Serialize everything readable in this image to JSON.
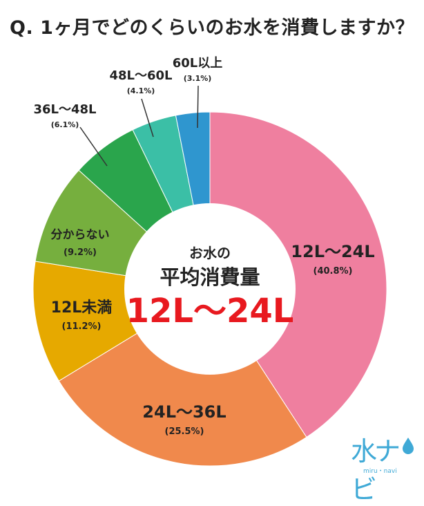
{
  "title": "Q. 1ヶ月でどのくらいのお水を消費しますか？",
  "center": {
    "line1": "お水の",
    "line2": "平均消費量",
    "value": "12L〜24L"
  },
  "logo": {
    "text": "水ナビ",
    "sub": "miru・navi"
  },
  "colors": {
    "12L〜24L": "#ef7f9f",
    "24L〜36L": "#f0894c",
    "12L未満": "#e6a900",
    "分からない": "#76af3e",
    "36L〜48L": "#2aa54c",
    "48L〜60L": "#3bbfa6",
    "60L以上": "#2f96cf",
    "accent": "#e8191f"
  },
  "chart_data": {
    "type": "pie",
    "categories": [
      "12L〜24L",
      "24L〜36L",
      "12L未満",
      "分からない",
      "36L〜48L",
      "48L〜60L",
      "60L以上"
    ],
    "values": [
      40.8,
      25.5,
      11.2,
      9.2,
      6.1,
      4.1,
      3.1
    ],
    "labels": [
      "(40.8%)",
      "(25.5%)",
      "(11.2%)",
      "(9.2%)",
      "(6.1%)",
      "(4.1%)",
      "(3.1%)"
    ],
    "title": "Q. 1ヶ月でどのくらいのお水を消費しますか？"
  }
}
